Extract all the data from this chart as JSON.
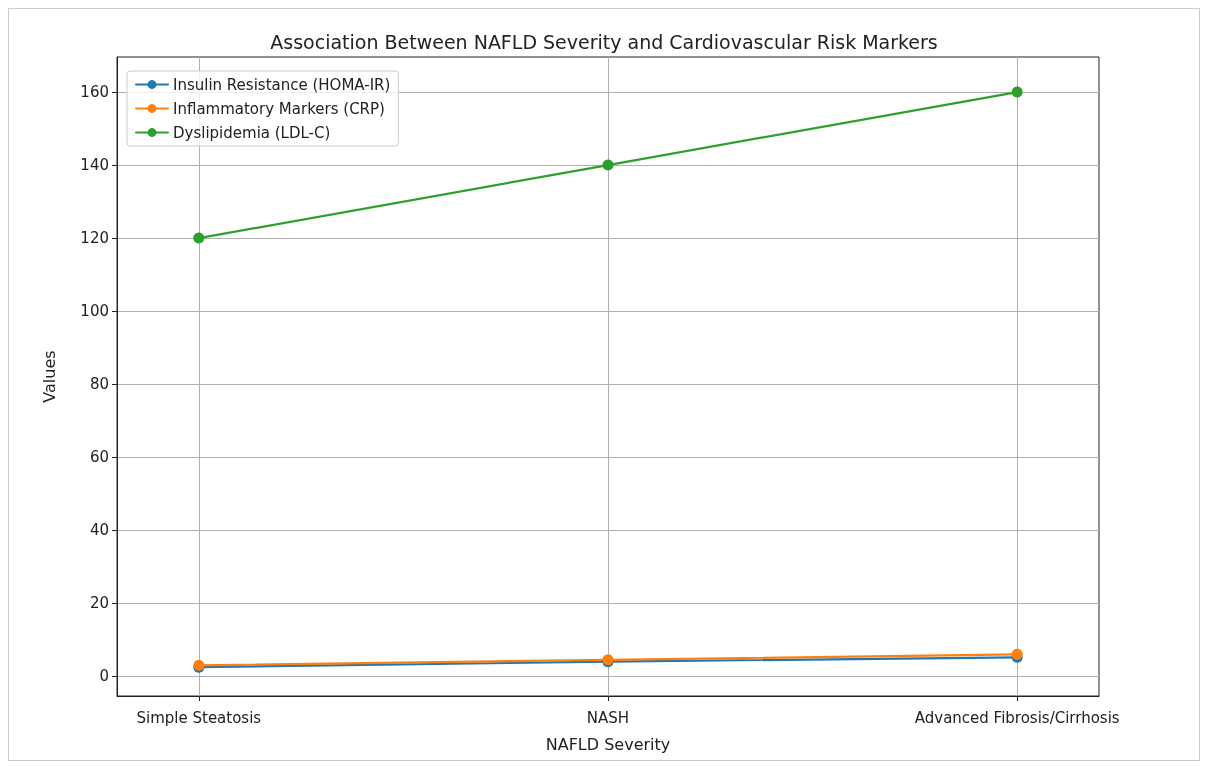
{
  "chart_data": {
    "type": "line",
    "title": "Association Between NAFLD Severity and Cardiovascular Risk Markers",
    "xlabel": "NAFLD Severity",
    "ylabel": "Values",
    "categories": [
      "Simple Steatosis",
      "NASH",
      "Advanced Fibrosis/Cirrhosis"
    ],
    "series": [
      {
        "name": "Insulin Resistance (HOMA-IR)",
        "color": "#1f77b4",
        "values": [
          2.5,
          4,
          5.2
        ]
      },
      {
        "name": "Inflammatory Markers (CRP)",
        "color": "#ff7f0e",
        "values": [
          3,
          4.5,
          6
        ]
      },
      {
        "name": "Dyslipidemia (LDL-C)",
        "color": "#2ca02c",
        "values": [
          120,
          140,
          160
        ]
      }
    ],
    "ylim": [
      -5.4,
      169.6
    ],
    "yticks": [
      0,
      20,
      40,
      60,
      80,
      100,
      120,
      140,
      160
    ],
    "grid": true,
    "legend": "top left",
    "marker": "circle",
    "line_style": "solid"
  }
}
